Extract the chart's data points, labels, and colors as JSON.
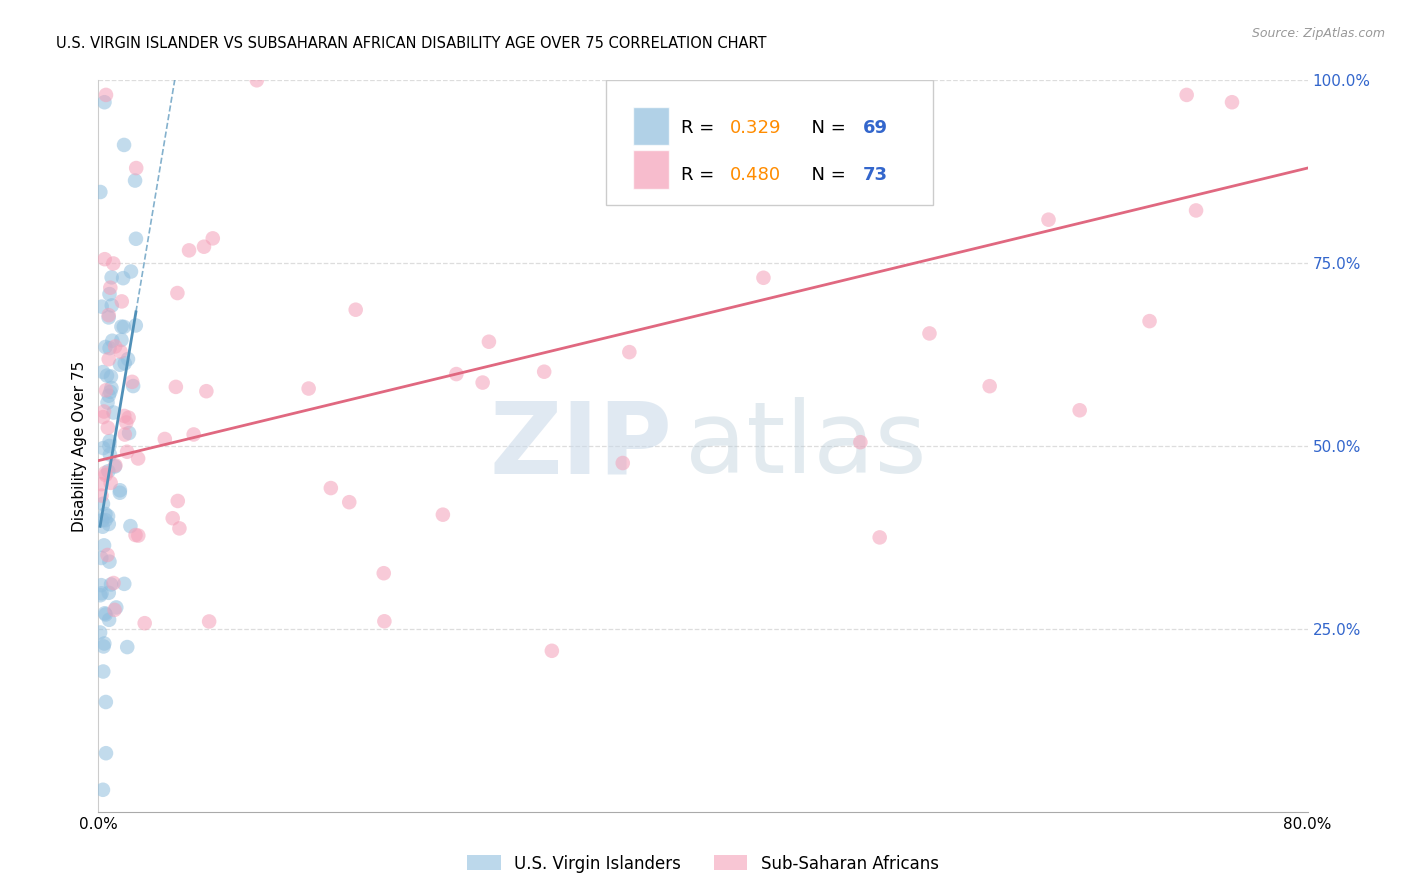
{
  "title": "U.S. VIRGIN ISLANDER VS SUBSAHARAN AFRICAN DISABILITY AGE OVER 75 CORRELATION CHART",
  "source": "Source: ZipAtlas.com",
  "ylabel": "Disability Age Over 75",
  "xmin": 0.0,
  "xmax": 0.8,
  "ymin": 0.0,
  "ymax": 1.0,
  "background_color": "#ffffff",
  "grid_color": "#dddddd",
  "blue_scatter_color": "#90bede",
  "pink_scatter_color": "#f4a0b8",
  "blue_line_color": "#5090b8",
  "pink_line_color": "#e06880",
  "blue_R": 0.329,
  "pink_R": 0.48,
  "blue_N": 69,
  "pink_N": 73,
  "legend_R_color": "#ff8c00",
  "legend_N_color": "#3366cc",
  "right_y_color": "#3366cc",
  "watermark_zip_color": "#c8d8e8",
  "watermark_atlas_color": "#b8ccd8"
}
